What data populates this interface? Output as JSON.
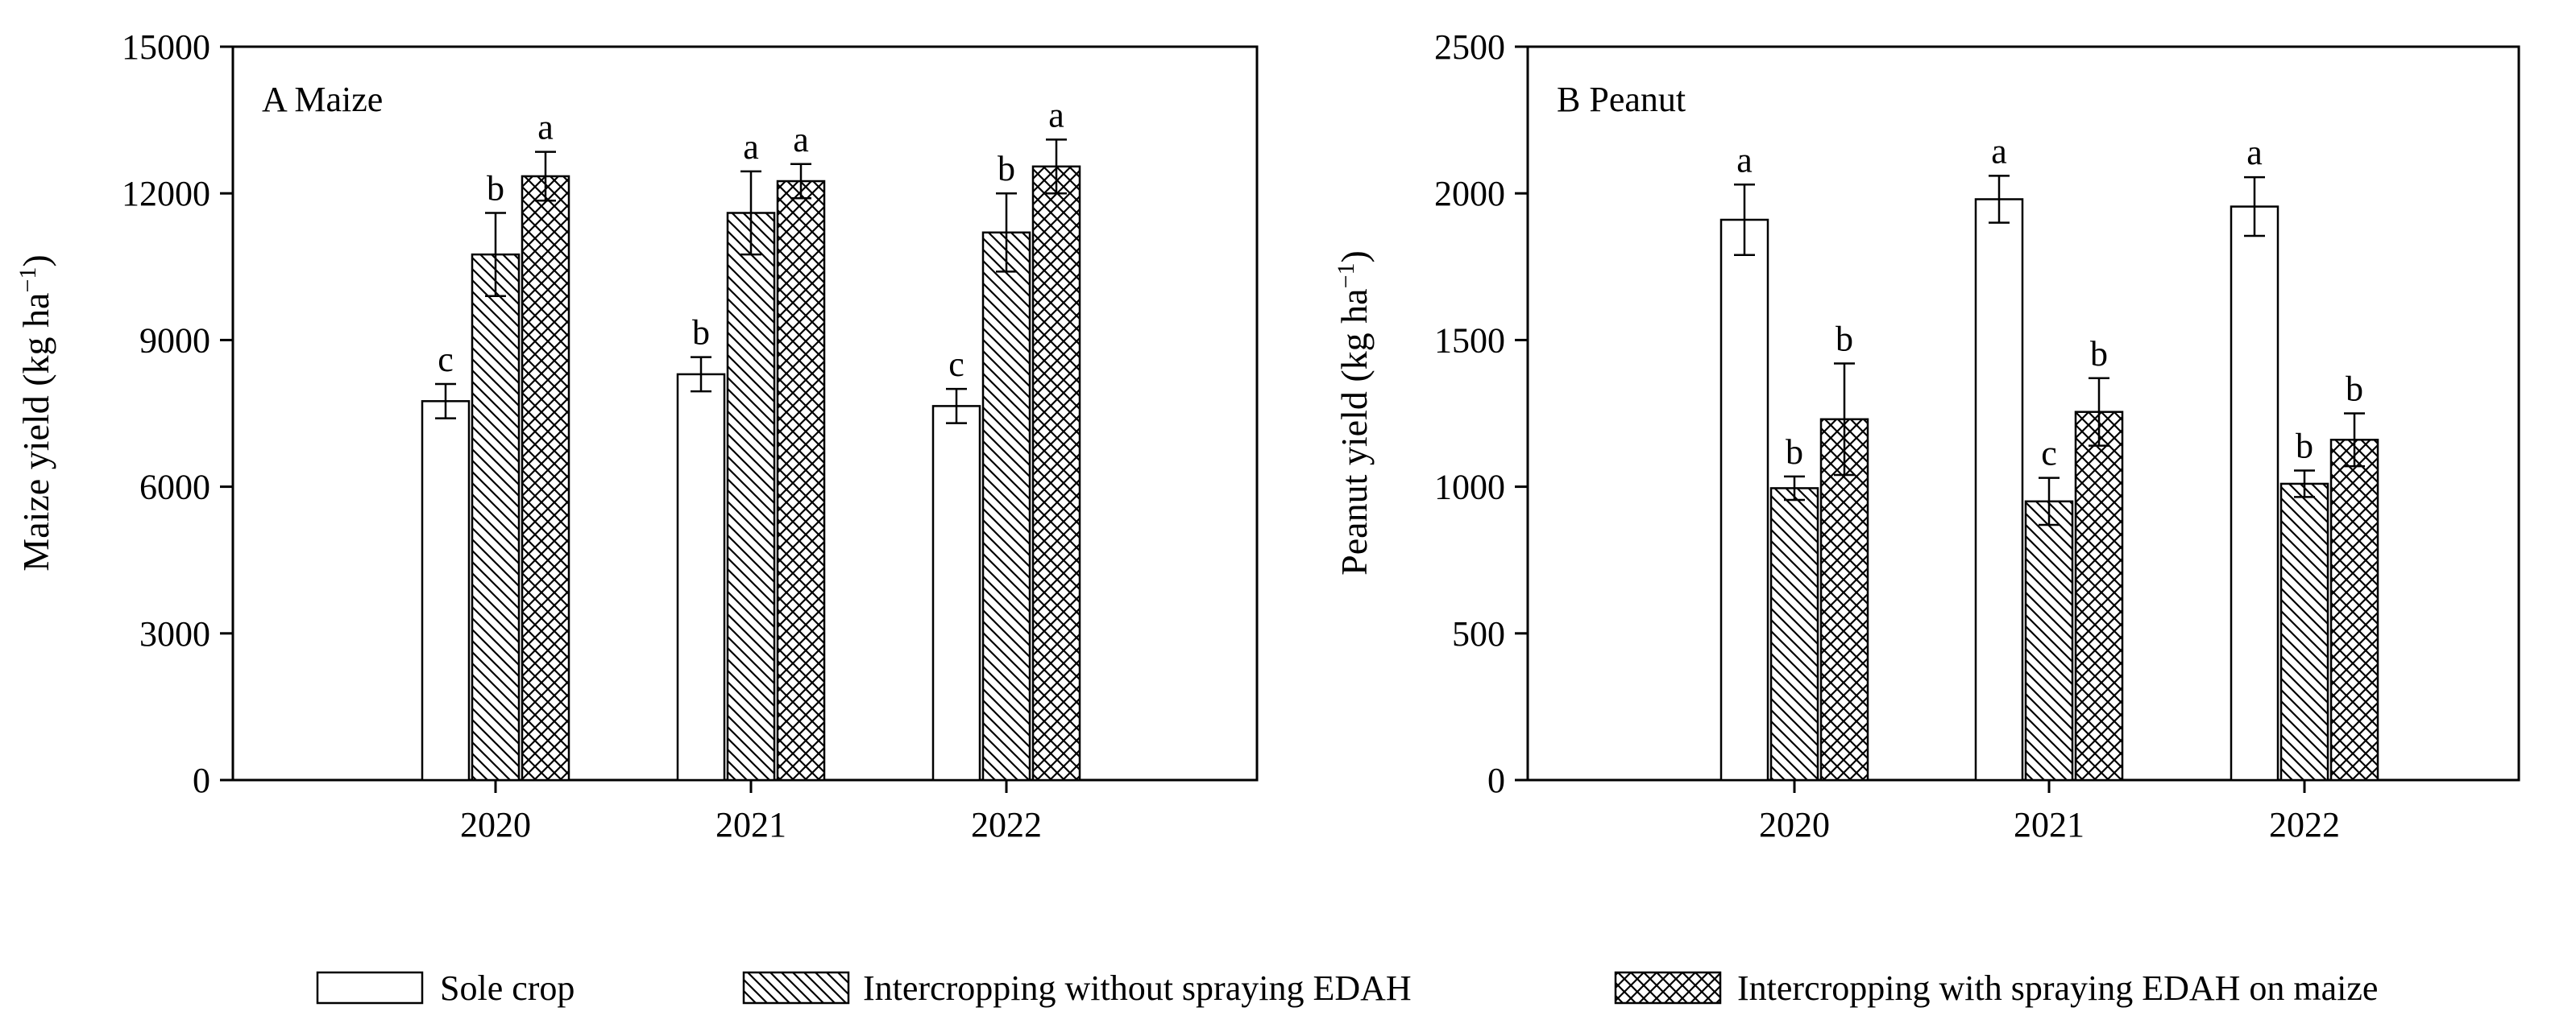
{
  "legend": [
    {
      "key": "sole",
      "label": "Sole crop"
    },
    {
      "key": "ic_no",
      "label": "Intercropping without spraying EDAH"
    },
    {
      "key": "ic_edah",
      "label": "Intercropping with spraying EDAH on maize"
    }
  ],
  "chart_data": [
    {
      "type": "bar",
      "panel_title": "A Maize",
      "ylabel_main": "Maize yield (kg ha",
      "ylabel_sup": "−1",
      "ylabel_close": ")",
      "ylim": [
        0,
        15000
      ],
      "yticks": [
        0,
        3000,
        6000,
        9000,
        12000,
        15000
      ],
      "ytick_labels": [
        "0",
        "3000",
        "6000",
        "9000",
        "12000",
        "15000"
      ],
      "categories": [
        "2020",
        "2021",
        "2022"
      ],
      "series": [
        {
          "key": "sole",
          "name": "Sole crop",
          "values": [
            7750,
            8300,
            7650
          ],
          "errors": [
            350,
            350,
            350
          ],
          "letters": [
            "c",
            "b",
            "c"
          ]
        },
        {
          "key": "ic_no",
          "name": "Intercropping without spraying EDAH",
          "values": [
            10750,
            11600,
            11200
          ],
          "errors": [
            850,
            850,
            800
          ],
          "letters": [
            "b",
            "a",
            "b"
          ]
        },
        {
          "key": "ic_edah",
          "name": "Intercropping with spraying EDAH on maize",
          "values": [
            12350,
            12250,
            12550
          ],
          "errors": [
            500,
            350,
            550
          ],
          "letters": [
            "a",
            "a",
            "a"
          ]
        }
      ]
    },
    {
      "type": "bar",
      "panel_title": "B Peanut",
      "ylabel_main": "Peanut yield (kg ha",
      "ylabel_sup": "−1",
      "ylabel_close": ")",
      "ylim": [
        0,
        2500
      ],
      "yticks": [
        0,
        500,
        1000,
        1500,
        2000,
        2500
      ],
      "ytick_labels": [
        "0",
        "500",
        "1000",
        "1500",
        "2000",
        "2500"
      ],
      "categories": [
        "2020",
        "2021",
        "2022"
      ],
      "series": [
        {
          "key": "sole",
          "name": "Sole crop",
          "values": [
            1910,
            1980,
            1955
          ],
          "errors": [
            120,
            80,
            100
          ],
          "letters": [
            "a",
            "a",
            "a"
          ]
        },
        {
          "key": "ic_no",
          "name": "Intercropping without spraying EDAH",
          "values": [
            995,
            950,
            1010
          ],
          "errors": [
            40,
            80,
            45
          ],
          "letters": [
            "b",
            "c",
            "b"
          ]
        },
        {
          "key": "ic_edah",
          "name": "Intercropping with spraying EDAH on maize",
          "values": [
            1230,
            1255,
            1160
          ],
          "errors": [
            190,
            115,
            90
          ],
          "letters": [
            "b",
            "b",
            "b"
          ]
        }
      ]
    }
  ]
}
